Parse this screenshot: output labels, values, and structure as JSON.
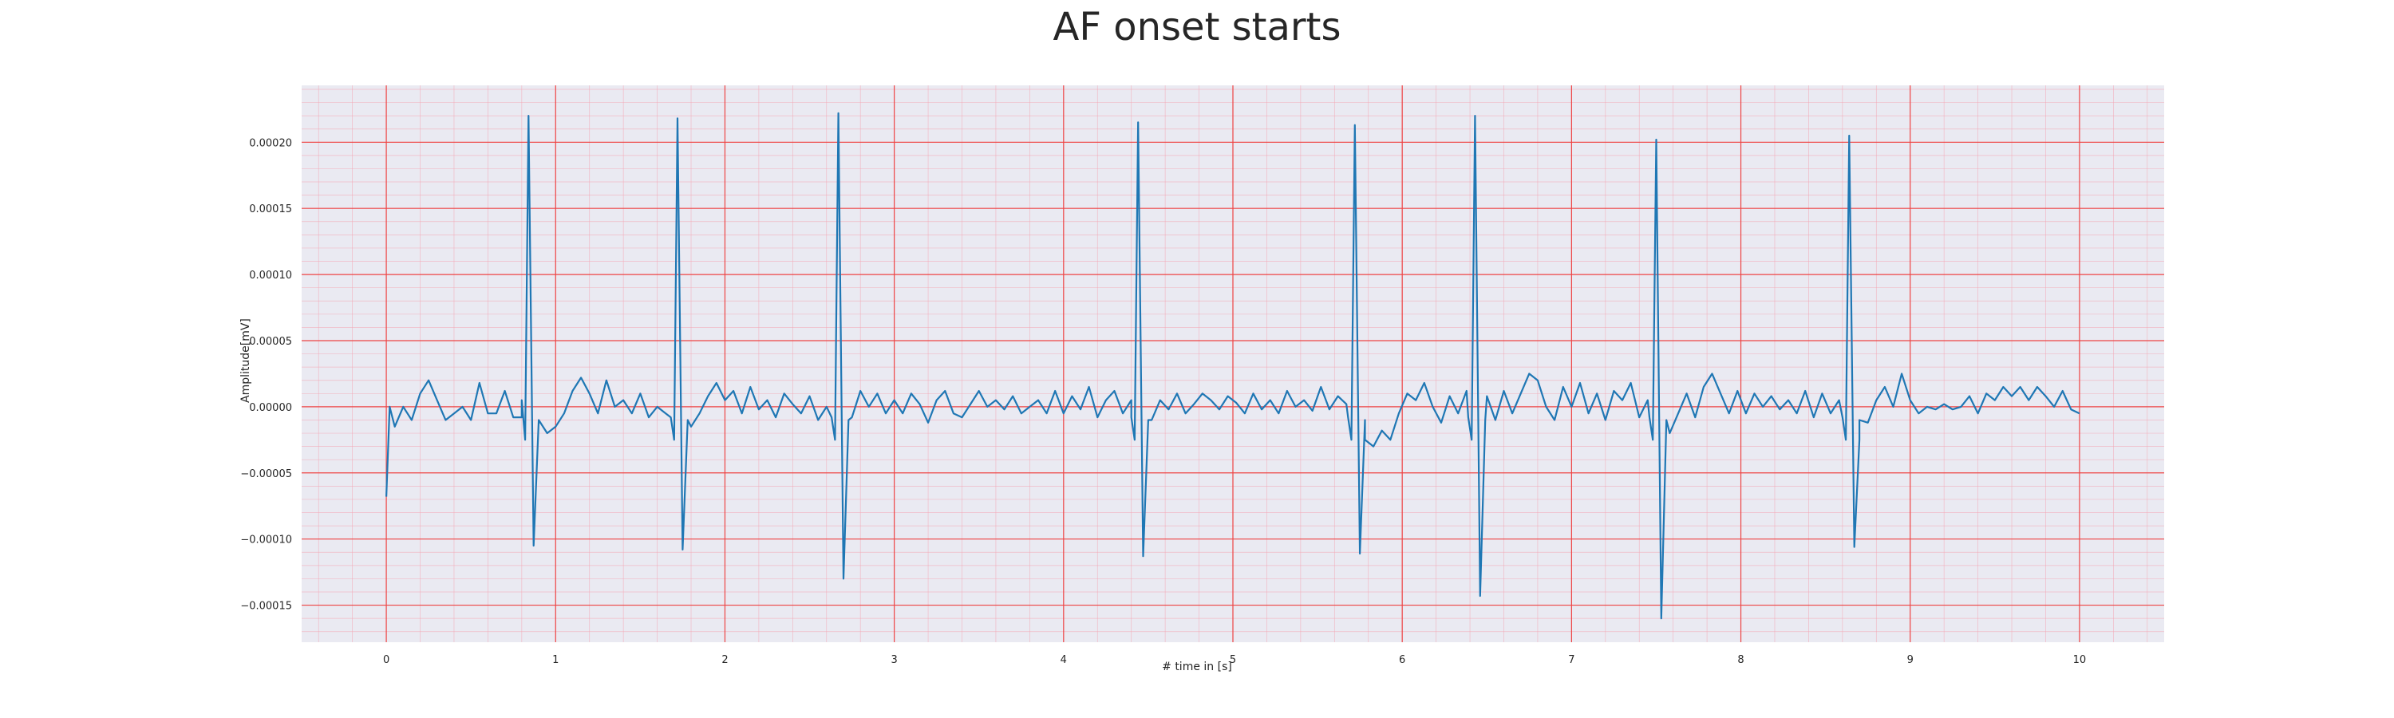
{
  "chart_data": {
    "type": "line",
    "title": "AF onset starts",
    "xlabel": "# time in [s]",
    "ylabel": "Amplitude[mV]",
    "xlim": [
      -0.5,
      10.5
    ],
    "ylim": [
      -0.000178,
      0.000243
    ],
    "xticks": [
      0,
      1,
      2,
      3,
      4,
      5,
      6,
      7,
      8,
      9,
      10
    ],
    "xtick_labels": [
      "0",
      "1",
      "2",
      "3",
      "4",
      "5",
      "6",
      "7",
      "8",
      "9",
      "10"
    ],
    "yticks": [
      -0.00015,
      -0.0001,
      -5e-05,
      0.0,
      5e-05,
      0.0001,
      0.00015,
      0.0002
    ],
    "ytick_labels": [
      "−0.00015",
      "−0.00010",
      "−0.00005",
      "0.00000",
      "0.00005",
      "0.00010",
      "0.00015",
      "0.00020"
    ],
    "grid": true,
    "series": [
      {
        "color": "#1f77b4",
        "beats": [
          {
            "t": 0.84,
            "r": 0.00022,
            "s": -0.000105
          },
          {
            "t": 1.72,
            "r": 0.000218,
            "s": -0.000108
          },
          {
            "t": 2.67,
            "r": 0.000222,
            "s": -0.00013
          },
          {
            "t": 4.44,
            "r": 0.000215,
            "s": -0.000113
          },
          {
            "t": 5.72,
            "r": 0.000213,
            "s": -0.000111
          },
          {
            "t": 6.43,
            "r": 0.00022,
            "s": -0.000143
          },
          {
            "t": 7.5,
            "r": 0.000202,
            "s": -0.00016
          },
          {
            "t": 8.64,
            "r": 0.000205,
            "s": -0.000106
          }
        ],
        "baseline": [
          [
            0.0,
            -6.8e-05
          ],
          [
            0.02,
            0.0
          ],
          [
            0.05,
            -1.5e-05
          ],
          [
            0.1,
            0.0
          ],
          [
            0.15,
            -1e-05
          ],
          [
            0.2,
            1e-05
          ],
          [
            0.25,
            2e-05
          ],
          [
            0.3,
            5e-06
          ],
          [
            0.35,
            -1e-05
          ],
          [
            0.4,
            -5e-06
          ],
          [
            0.45,
            0.0
          ],
          [
            0.5,
            -1e-05
          ],
          [
            0.55,
            1.8e-05
          ],
          [
            0.6,
            -5e-06
          ],
          [
            0.65,
            -5e-06
          ],
          [
            0.7,
            1.2e-05
          ],
          [
            0.75,
            -8e-06
          ],
          [
            0.8,
            5e-06
          ],
          [
            0.95,
            -2e-05
          ],
          [
            1.0,
            -1.5e-05
          ],
          [
            1.05,
            -5e-06
          ],
          [
            1.1,
            1.2e-05
          ],
          [
            1.15,
            2.2e-05
          ],
          [
            1.2,
            1e-05
          ],
          [
            1.25,
            -5e-06
          ],
          [
            1.3,
            2e-05
          ],
          [
            1.35,
            0.0
          ],
          [
            1.4,
            5e-06
          ],
          [
            1.45,
            -5e-06
          ],
          [
            1.5,
            1e-05
          ],
          [
            1.55,
            -8e-06
          ],
          [
            1.6,
            0.0
          ],
          [
            1.65,
            -5e-06
          ],
          [
            1.8,
            -1.5e-05
          ],
          [
            1.85,
            -5e-06
          ],
          [
            1.9,
            8e-06
          ],
          [
            1.95,
            1.8e-05
          ],
          [
            2.0,
            5e-06
          ],
          [
            2.05,
            1.2e-05
          ],
          [
            2.1,
            -5e-06
          ],
          [
            2.15,
            1.5e-05
          ],
          [
            2.2,
            -2e-06
          ],
          [
            2.25,
            5e-06
          ],
          [
            2.3,
            -8e-06
          ],
          [
            2.35,
            1e-05
          ],
          [
            2.4,
            2e-06
          ],
          [
            2.45,
            -5e-06
          ],
          [
            2.5,
            8e-06
          ],
          [
            2.55,
            -1e-05
          ],
          [
            2.6,
            0.0
          ],
          [
            2.75,
            -8e-06
          ],
          [
            2.8,
            1.2e-05
          ],
          [
            2.85,
            0.0
          ],
          [
            2.9,
            1e-05
          ],
          [
            2.95,
            -5e-06
          ],
          [
            3.0,
            5e-06
          ],
          [
            3.05,
            -5e-06
          ],
          [
            3.1,
            1e-05
          ],
          [
            3.15,
            2e-06
          ],
          [
            3.2,
            -1.2e-05
          ],
          [
            3.25,
            5e-06
          ],
          [
            3.3,
            1.2e-05
          ],
          [
            3.35,
            -5e-06
          ],
          [
            3.4,
            -8e-06
          ],
          [
            3.45,
            2e-06
          ],
          [
            3.5,
            1.2e-05
          ],
          [
            3.55,
            0.0
          ],
          [
            3.6,
            5e-06
          ],
          [
            3.65,
            -2e-06
          ],
          [
            3.7,
            8e-06
          ],
          [
            3.75,
            -5e-06
          ],
          [
            3.8,
            0.0
          ],
          [
            3.85,
            5e-06
          ],
          [
            3.9,
            -5e-06
          ],
          [
            3.95,
            1.2e-05
          ],
          [
            4.0,
            -5e-06
          ],
          [
            4.05,
            8e-06
          ],
          [
            4.1,
            -2e-06
          ],
          [
            4.15,
            1.5e-05
          ],
          [
            4.2,
            -8e-06
          ],
          [
            4.25,
            5e-06
          ],
          [
            4.3,
            1.2e-05
          ],
          [
            4.35,
            -5e-06
          ],
          [
            4.4,
            5e-06
          ],
          [
            4.52,
            -1e-05
          ],
          [
            4.57,
            5e-06
          ],
          [
            4.62,
            -2e-06
          ],
          [
            4.67,
            1e-05
          ],
          [
            4.72,
            -5e-06
          ],
          [
            4.77,
            2e-06
          ],
          [
            4.82,
            1e-05
          ],
          [
            4.87,
            5e-06
          ],
          [
            4.92,
            -2e-06
          ],
          [
            4.97,
            8e-06
          ],
          [
            5.02,
            3e-06
          ],
          [
            5.07,
            -5e-06
          ],
          [
            5.12,
            1e-05
          ],
          [
            5.17,
            -2e-06
          ],
          [
            5.22,
            5e-06
          ],
          [
            5.27,
            -5e-06
          ],
          [
            5.32,
            1.2e-05
          ],
          [
            5.37,
            0.0
          ],
          [
            5.42,
            5e-06
          ],
          [
            5.47,
            -3e-06
          ],
          [
            5.52,
            1.5e-05
          ],
          [
            5.57,
            -2e-06
          ],
          [
            5.62,
            8e-06
          ],
          [
            5.67,
            2e-06
          ],
          [
            5.78,
            -2.5e-05
          ],
          [
            5.83,
            -3e-05
          ],
          [
            5.88,
            -1.8e-05
          ],
          [
            5.93,
            -2.5e-05
          ],
          [
            5.98,
            -5e-06
          ],
          [
            6.03,
            1e-05
          ],
          [
            6.08,
            5e-06
          ],
          [
            6.13,
            1.8e-05
          ],
          [
            6.18,
            0.0
          ],
          [
            6.23,
            -1.2e-05
          ],
          [
            6.28,
            8e-06
          ],
          [
            6.33,
            -5e-06
          ],
          [
            6.38,
            1.2e-05
          ],
          [
            6.5,
            8e-06
          ],
          [
            6.55,
            -1e-05
          ],
          [
            6.6,
            1.2e-05
          ],
          [
            6.65,
            -5e-06
          ],
          [
            6.7,
            1e-05
          ],
          [
            6.75,
            2.5e-05
          ],
          [
            6.8,
            2e-05
          ],
          [
            6.85,
            0.0
          ],
          [
            6.9,
            -1e-05
          ],
          [
            6.95,
            1.5e-05
          ],
          [
            7.0,
            0.0
          ],
          [
            7.05,
            1.8e-05
          ],
          [
            7.1,
            -5e-06
          ],
          [
            7.15,
            1e-05
          ],
          [
            7.2,
            -1e-05
          ],
          [
            7.25,
            1.2e-05
          ],
          [
            7.3,
            5e-06
          ],
          [
            7.35,
            1.8e-05
          ],
          [
            7.4,
            -8e-06
          ],
          [
            7.45,
            5e-06
          ],
          [
            7.58,
            -2e-05
          ],
          [
            7.63,
            -5e-06
          ],
          [
            7.68,
            1e-05
          ],
          [
            7.73,
            -8e-06
          ],
          [
            7.78,
            1.5e-05
          ],
          [
            7.83,
            2.5e-05
          ],
          [
            7.88,
            1e-05
          ],
          [
            7.93,
            -5e-06
          ],
          [
            7.98,
            1.2e-05
          ],
          [
            8.03,
            -5e-06
          ],
          [
            8.08,
            1e-05
          ],
          [
            8.13,
            0.0
          ],
          [
            8.18,
            8e-06
          ],
          [
            8.23,
            -2e-06
          ],
          [
            8.28,
            5e-06
          ],
          [
            8.33,
            -5e-06
          ],
          [
            8.38,
            1.2e-05
          ],
          [
            8.43,
            -8e-06
          ],
          [
            8.48,
            1e-05
          ],
          [
            8.53,
            -5e-06
          ],
          [
            8.58,
            5e-06
          ],
          [
            8.7,
            -2.5e-05
          ],
          [
            8.75,
            -1.2e-05
          ],
          [
            8.8,
            5e-06
          ],
          [
            8.85,
            1.5e-05
          ],
          [
            8.9,
            0.0
          ],
          [
            8.95,
            2.5e-05
          ],
          [
            9.0,
            5e-06
          ],
          [
            9.05,
            -5e-06
          ],
          [
            9.1,
            0.0
          ],
          [
            9.15,
            -2e-06
          ],
          [
            9.2,
            2e-06
          ],
          [
            9.25,
            -2e-06
          ],
          [
            9.3,
            0.0
          ],
          [
            9.35,
            8e-06
          ],
          [
            9.4,
            -5e-06
          ],
          [
            9.45,
            1e-05
          ],
          [
            9.5,
            5e-06
          ],
          [
            9.55,
            1.5e-05
          ],
          [
            9.6,
            8e-06
          ],
          [
            9.65,
            1.5e-05
          ],
          [
            9.7,
            5e-06
          ],
          [
            9.75,
            1.5e-05
          ],
          [
            9.8,
            8e-06
          ],
          [
            9.85,
            0.0
          ],
          [
            9.9,
            1.2e-05
          ],
          [
            9.95,
            -2e-06
          ],
          [
            10.0,
            -5e-06
          ]
        ]
      }
    ]
  }
}
